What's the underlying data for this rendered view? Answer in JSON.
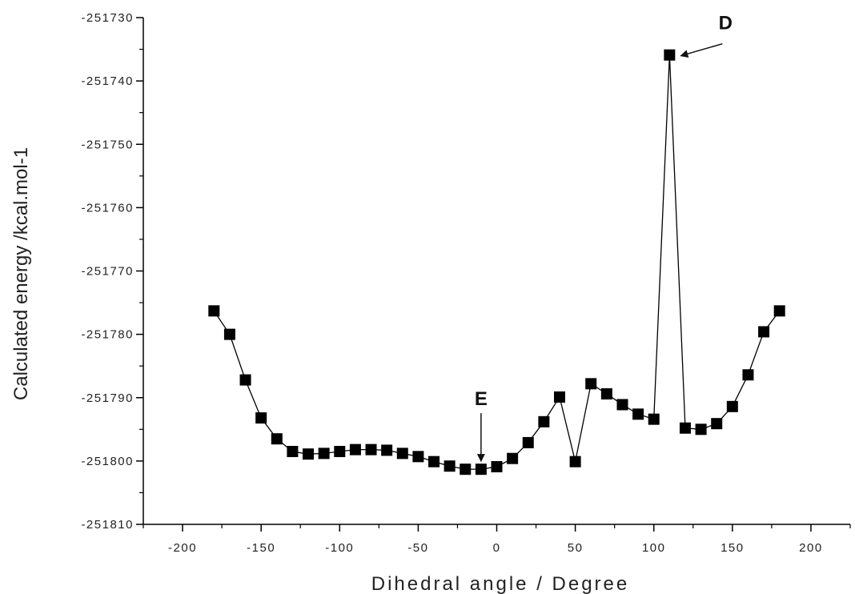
{
  "chart_data": {
    "type": "scatter",
    "connected": true,
    "marker": "filled-square",
    "color": "#000000",
    "xlabel": "Dihedral angle / Degree",
    "ylabel": "Calculated energy /kcal.mol-1",
    "xlim": [
      -225,
      225
    ],
    "ylim": [
      -251810,
      -251730
    ],
    "x_ticks": [
      "-200",
      "-150",
      "-100",
      "-50",
      "0",
      "50",
      "100",
      "150",
      "200"
    ],
    "y_ticks": [
      "-251730",
      "-251740",
      "-251750",
      "-251760",
      "-251770",
      "-251780",
      "-251790",
      "-251800",
      "-251810"
    ],
    "grid": false,
    "series": [
      {
        "x": [
          -180,
          -170,
          -160,
          -150,
          -140,
          -130,
          -120,
          -110,
          -100,
          -90,
          -80,
          -70,
          -60,
          -50,
          -40,
          -30,
          -20,
          -10,
          0,
          10,
          20,
          30,
          40,
          50,
          60,
          70,
          80,
          90,
          100,
          110,
          120,
          130,
          140,
          150,
          160,
          170,
          180
        ],
        "y": [
          -251776.3,
          -251780.0,
          -251787.2,
          -251793.2,
          -251796.5,
          -251798.5,
          -251798.9,
          -251798.8,
          -251798.5,
          -251798.2,
          -251798.2,
          -251798.3,
          -251798.8,
          -251799.3,
          -251800.1,
          -251800.8,
          -251801.3,
          -251801.3,
          -251800.9,
          -251799.6,
          -251797.1,
          -251793.8,
          -251789.9,
          -251800.1,
          -251787.8,
          -251789.4,
          -251791.1,
          -251792.6,
          -251793.4,
          -251735.9,
          -251794.8,
          -251795.0,
          -251794.1,
          -251791.4,
          -251786.4,
          -251779.6,
          -251776.3
        ]
      }
    ],
    "annotations": [
      {
        "text": "E",
        "arrow": "down",
        "points_to_x": -10
      },
      {
        "text": "D",
        "arrow": "left",
        "points_to_x": 110
      }
    ]
  }
}
